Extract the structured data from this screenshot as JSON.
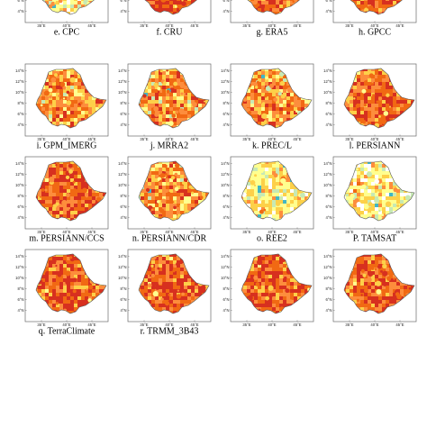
{
  "figure": {
    "lat_ticks": [
      "14°N",
      "12°N",
      "10°N",
      "8°N",
      "6°N",
      "4°N"
    ],
    "lon_ticks": [
      "35°E",
      "40°E",
      "45°E"
    ],
    "palette": {
      "high": "#d7301f",
      "mid_high": "#f16913",
      "mid": "#fd8d3c",
      "low_mid": "#fdd049",
      "low": "#ffff8f",
      "very_low": "#c7e9b4",
      "lowest": "#41b6c4",
      "none": "#ffffff",
      "border": "#5a5a5a"
    },
    "panels": [
      {
        "id": "e",
        "label": "e. CPC",
        "style": "yellow"
      },
      {
        "id": "f",
        "label": "f. CRU",
        "style": "hot"
      },
      {
        "id": "g",
        "label": "g. ERA5",
        "style": "hot"
      },
      {
        "id": "h",
        "label": "h. GPCC",
        "style": "hot"
      },
      {
        "id": "i",
        "label": "i. GPM_IMERG",
        "style": "mixed"
      },
      {
        "id": "j",
        "label": "j. MRRA2",
        "style": "mixed"
      },
      {
        "id": "k",
        "label": "k. PREC/L",
        "style": "mixed"
      },
      {
        "id": "l",
        "label": "l. PERSIANN",
        "style": "hot"
      },
      {
        "id": "m",
        "label": "m. PERSIANN/CCS",
        "style": "hot"
      },
      {
        "id": "n",
        "label": "n. PERSIANN/CDR",
        "style": "mixed"
      },
      {
        "id": "o",
        "label": "o. REE2",
        "style": "yellow"
      },
      {
        "id": "p",
        "label": "P. TAMSAT",
        "style": "yellow"
      },
      {
        "id": "q",
        "label": "q. TerraClimate",
        "style": "hot"
      },
      {
        "id": "r",
        "label": "r. TRMM_3B43",
        "style": "hot"
      },
      {
        "id": "s",
        "label": "",
        "style": "hot"
      },
      {
        "id": "t",
        "label": "",
        "style": "hot"
      }
    ]
  }
}
